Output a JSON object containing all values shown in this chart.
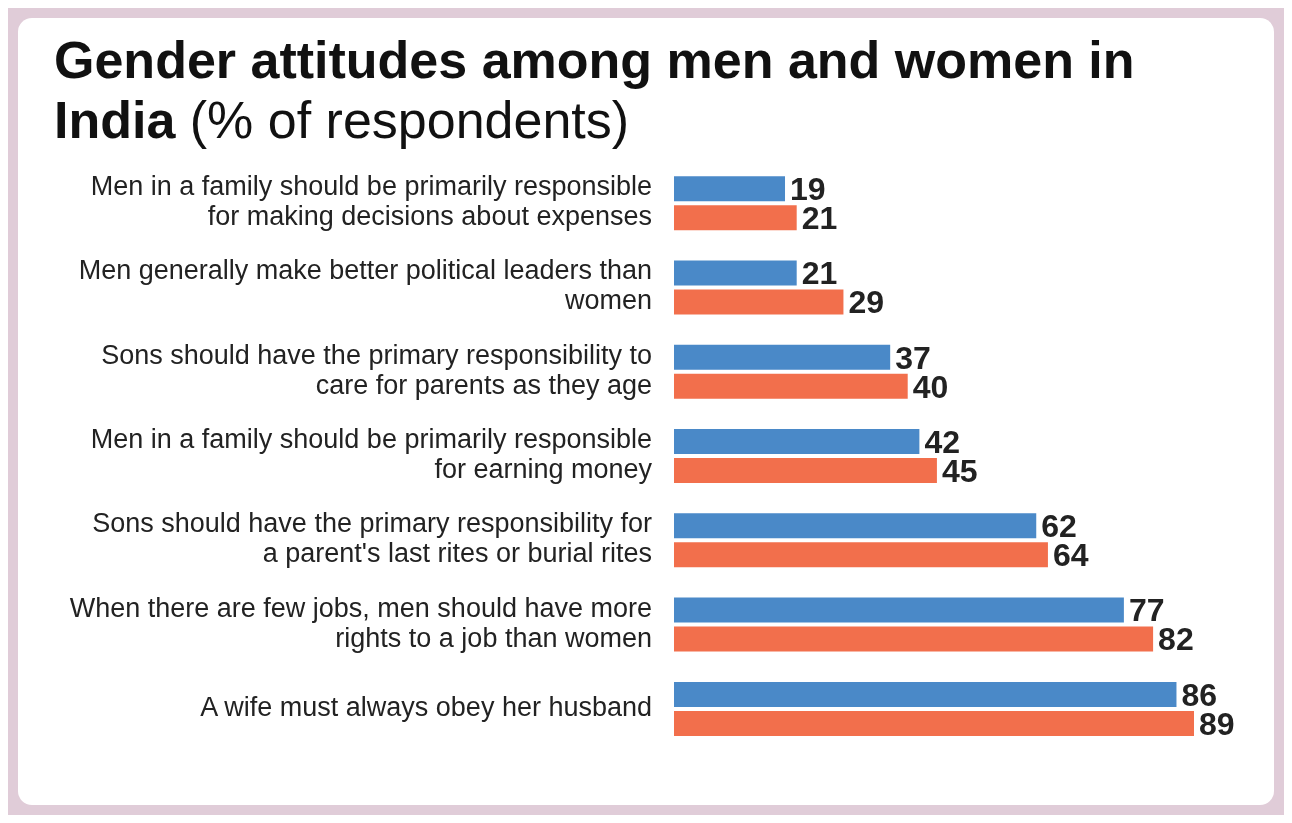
{
  "chart_data": {
    "type": "bar",
    "orientation": "horizontal",
    "title": "Gender attitudes among men and women in India",
    "subtitle": "(% of respondents)",
    "categories": [
      "Men in a family should be primarily responsible for making decisions about expenses",
      "Men generally make better political leaders than women",
      "Sons should have the primary responsibility to care for parents as they age",
      "Men in a family should be primarily responsible for earning money",
      "Sons should have the primary responsibility for a parent's last rites or burial rites",
      "When there are few jobs, men should have more rights to a job than women",
      "A wife must always obey her husband"
    ],
    "series": [
      {
        "color": "#4a89c8",
        "values": [
          19,
          21,
          37,
          42,
          62,
          77,
          86
        ]
      },
      {
        "color": "#f26f4c",
        "values": [
          21,
          29,
          40,
          45,
          64,
          82,
          89
        ]
      }
    ],
    "data_labels": true
  }
}
